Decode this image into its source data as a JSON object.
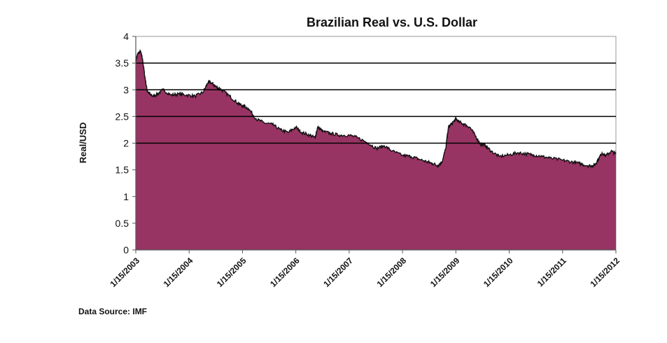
{
  "chart_data": {
    "type": "area",
    "title": "Brazilian Real vs. U.S. Dollar",
    "ylabel": "Real/USD",
    "xlabel": "",
    "source": "Data Source: IMF",
    "ylim": [
      0,
      4
    ],
    "yticks": [
      "0",
      "0.5",
      "1",
      "1.5",
      "2",
      "2.5",
      "3",
      "3.5",
      "4"
    ],
    "gridlines": [
      2,
      2.5,
      3,
      3.5
    ],
    "xticks": [
      "1/15/2003",
      "1/15/2004",
      "1/15/2005",
      "1/15/2006",
      "1/15/2007",
      "1/15/2008",
      "1/15/2009",
      "1/15/2010",
      "1/15/2011",
      "1/15/2012"
    ],
    "xlim": [
      2003.04,
      2012.04
    ],
    "fill_color": "#983463",
    "line_color": "#111111",
    "series": [
      {
        "x": [
          2003.04,
          2003.08,
          2003.13,
          2003.17,
          2003.21,
          2003.25,
          2003.3,
          2003.35,
          2003.42,
          2003.55,
          2003.7,
          2003.85,
          2004.0,
          2004.15,
          2004.3,
          2004.4,
          2004.47,
          2004.55,
          2004.65,
          2004.8,
          2004.95,
          2005.04,
          2005.15,
          2005.3,
          2005.45,
          2005.6,
          2005.75,
          2005.9,
          2006.04,
          2006.15,
          2006.3,
          2006.4,
          2006.45,
          2006.55,
          2006.7,
          2006.85,
          2007.04,
          2007.2,
          2007.4,
          2007.55,
          2007.7,
          2007.85,
          2008.04,
          2008.2,
          2008.35,
          2008.5,
          2008.6,
          2008.7,
          2008.78,
          2008.85,
          2008.9,
          2008.95,
          2009.04,
          2009.1,
          2009.2,
          2009.3,
          2009.4,
          2009.5,
          2009.6,
          2009.7,
          2009.85,
          2010.04,
          2010.2,
          2010.35,
          2010.5,
          2010.65,
          2010.8,
          2011.04,
          2011.2,
          2011.35,
          2011.5,
          2011.6,
          2011.65,
          2011.7,
          2011.78,
          2011.85,
          2011.95,
          2012.04
        ],
        "values": [
          3.55,
          3.68,
          3.72,
          3.55,
          3.25,
          3.0,
          2.92,
          2.88,
          2.9,
          3.0,
          2.9,
          2.92,
          2.9,
          2.88,
          2.95,
          3.15,
          3.12,
          3.05,
          3.0,
          2.88,
          2.75,
          2.7,
          2.65,
          2.45,
          2.38,
          2.35,
          2.25,
          2.2,
          2.3,
          2.2,
          2.15,
          2.1,
          2.3,
          2.22,
          2.18,
          2.15,
          2.15,
          2.1,
          2.0,
          1.9,
          1.95,
          1.85,
          1.77,
          1.75,
          1.7,
          1.65,
          1.62,
          1.58,
          1.65,
          1.9,
          2.3,
          2.35,
          2.45,
          2.4,
          2.35,
          2.3,
          2.15,
          1.98,
          1.95,
          1.85,
          1.75,
          1.78,
          1.82,
          1.8,
          1.78,
          1.75,
          1.72,
          1.68,
          1.65,
          1.62,
          1.58,
          1.57,
          1.6,
          1.68,
          1.82,
          1.76,
          1.85,
          1.8
        ]
      }
    ]
  }
}
